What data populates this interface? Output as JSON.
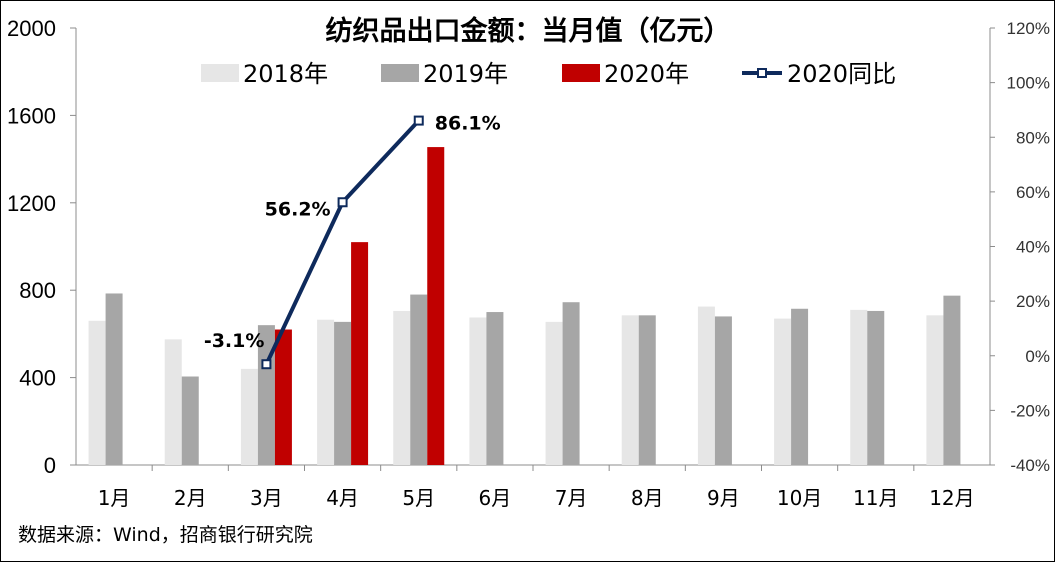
{
  "chart_data": {
    "type": "bar",
    "title": "纺织品出口金额：当月值（亿元）",
    "categories": [
      "1月",
      "2月",
      "3月",
      "4月",
      "5月",
      "6月",
      "7月",
      "8月",
      "9月",
      "10月",
      "11月",
      "12月"
    ],
    "y_left": {
      "ylim": [
        0,
        2000
      ],
      "ticks": [
        "0",
        "400",
        "800",
        "1200",
        "1600",
        "2000"
      ]
    },
    "y_right": {
      "ylim": [
        -40,
        120
      ],
      "ticks": [
        "-40%",
        "-20%",
        "0%",
        "20%",
        "40%",
        "60%",
        "80%",
        "100%",
        "120%"
      ]
    },
    "series": [
      {
        "name": "2018年",
        "type": "bar",
        "color": "#e6e6e6",
        "values": [
          660,
          575,
          440,
          665,
          705,
          675,
          655,
          685,
          725,
          670,
          710,
          685
        ]
      },
      {
        "name": "2019年",
        "type": "bar",
        "color": "#a6a6a6",
        "values": [
          785,
          405,
          640,
          655,
          780,
          700,
          745,
          685,
          680,
          715,
          705,
          775
        ]
      },
      {
        "name": "2020年",
        "type": "bar",
        "color": "#c00000",
        "values": [
          null,
          null,
          620,
          1020,
          1455,
          null,
          null,
          null,
          null,
          null,
          null,
          null
        ]
      },
      {
        "name": "2020同比",
        "type": "line",
        "axis": "right",
        "color": "#0e2a5c",
        "values": [
          null,
          null,
          -3.1,
          56.2,
          86.1,
          null,
          null,
          null,
          null,
          null,
          null,
          null
        ],
        "labels": [
          "",
          "",
          "-3.1%",
          "56.2%",
          "86.1%",
          "",
          "",
          "",
          "",
          "",
          "",
          ""
        ]
      }
    ],
    "legend": "top-center",
    "grid": false
  },
  "source_note": "数据来源：Wind，招商银行研究院"
}
